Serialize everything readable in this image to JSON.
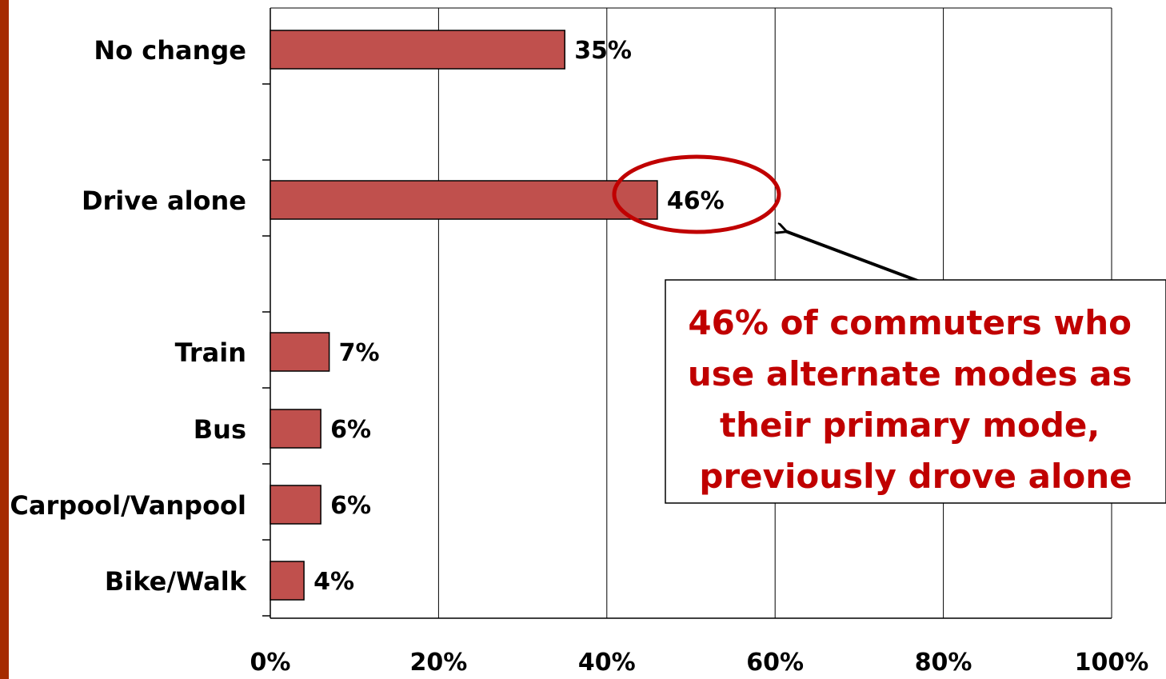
{
  "chart_data": {
    "type": "bar",
    "orientation": "horizontal",
    "categories": [
      "No change",
      "Drive alone",
      "Train",
      "Bus",
      "Carpool/Vanpool",
      "Bike/Walk"
    ],
    "values": [
      35,
      46,
      7,
      6,
      6,
      4
    ],
    "data_labels": [
      "35%",
      "46%",
      "7%",
      "6%",
      "6%",
      "4%"
    ],
    "xlim": [
      0,
      100
    ],
    "x_ticks": [
      0,
      20,
      40,
      60,
      80,
      100
    ],
    "x_tick_labels": [
      "0%",
      "20%",
      "40%",
      "60%",
      "80%",
      "100%"
    ],
    "grid": "vertical",
    "bar_color": "#c0504d",
    "highlight_category": "Drive alone",
    "annotation": {
      "lines": [
        "46% of commuters who",
        "use alternate modes as",
        "their primary mode,",
        "previously drove alone"
      ],
      "color": "#c00000"
    }
  },
  "colors": {
    "accent_bar": "#a52a00",
    "bar": "#c0504d",
    "highlight": "#c00000"
  }
}
